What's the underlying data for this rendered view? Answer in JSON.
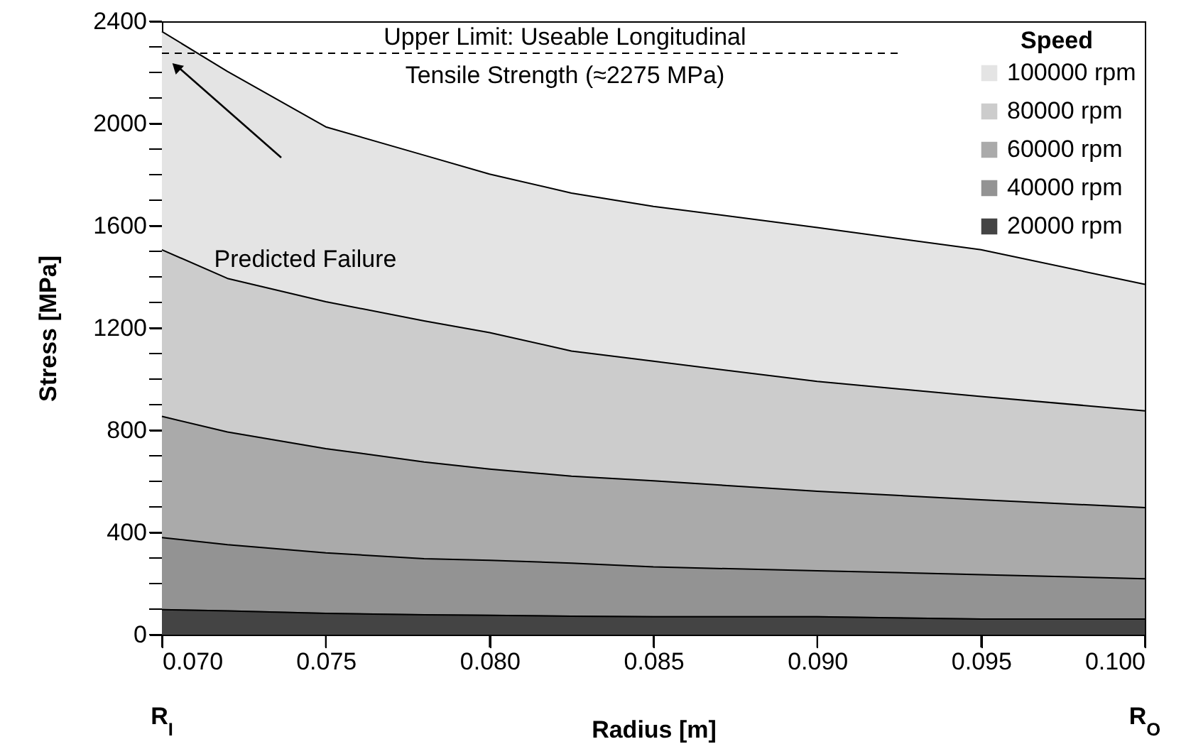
{
  "chart_data": {
    "type": "area",
    "xlabel": "Radius [m]",
    "ylabel": "Stress [MPa]",
    "legend_title": "Speed",
    "legend": "top right",
    "x": [
      0.07,
      0.072,
      0.075,
      0.078,
      0.08,
      0.0825,
      0.085,
      0.09,
      0.095,
      0.1
    ],
    "series": [
      {
        "name": "100000 rpm",
        "color": "#e4e4e4",
        "values": [
          2360,
          2204,
          1987,
          1876,
          1802,
          1728,
          1676,
          1593,
          1506,
          1371
        ]
      },
      {
        "name": "80000 rpm",
        "color": "#cccccc",
        "values": [
          1506,
          1394,
          1303,
          1228,
          1182,
          1110,
          1070,
          991,
          932,
          876
        ]
      },
      {
        "name": "60000 rpm",
        "color": "#aaaaaa",
        "values": [
          854,
          793,
          728,
          676,
          648,
          620,
          602,
          561,
          528,
          497
        ]
      },
      {
        "name": "40000 rpm",
        "color": "#939393",
        "values": [
          380,
          352,
          320,
          297,
          291,
          280,
          265,
          250,
          235,
          219
        ]
      },
      {
        "name": "20000 rpm",
        "color": "#444444",
        "values": [
          98,
          93,
          83,
          78,
          76,
          72,
          70,
          70,
          61,
          61
        ]
      }
    ],
    "xlim": [
      0.07,
      0.1
    ],
    "xticks": [
      {
        "value": 0.07,
        "label": "0.070"
      },
      {
        "value": 0.075,
        "label": "0.075"
      },
      {
        "value": 0.08,
        "label": "0.080"
      },
      {
        "value": 0.085,
        "label": "0.085"
      },
      {
        "value": 0.09,
        "label": "0.090"
      },
      {
        "value": 0.095,
        "label": "0.095"
      },
      {
        "value": 0.1,
        "label": "0.100"
      }
    ],
    "ylim": [
      0,
      2400
    ],
    "yticks": [
      0,
      {
        "value": 100,
        "label": null
      },
      {
        "value": 200,
        "label": null
      },
      {
        "value": 300,
        "label": null
      },
      400,
      {
        "value": 500,
        "label": null
      },
      {
        "value": 600,
        "label": null
      },
      {
        "value": 700,
        "label": null
      },
      800,
      {
        "value": 900,
        "label": null
      },
      {
        "value": 1000,
        "label": null
      },
      {
        "value": 1100,
        "label": null
      },
      1200,
      {
        "value": 1300,
        "label": null
      },
      {
        "value": 1400,
        "label": null
      },
      {
        "value": 1500,
        "label": null
      },
      1600,
      {
        "value": 1700,
        "label": null
      },
      {
        "value": 1800,
        "label": null
      },
      {
        "value": 1900,
        "label": null
      },
      2000,
      {
        "value": 2100,
        "label": null
      },
      {
        "value": 2200,
        "label": null
      },
      {
        "value": 2300,
        "label": null
      },
      2400
    ],
    "ref_lines": [
      {
        "axis": "y",
        "value": 2275,
        "label": "Upper Limit: Useable Longitudinal\nTensile Strength (≈2275 MPa)",
        "line_style": "dashed"
      }
    ],
    "annotations": [
      "Predicted Failure",
      "R$_{I}$",
      "R$_{O}$"
    ]
  }
}
